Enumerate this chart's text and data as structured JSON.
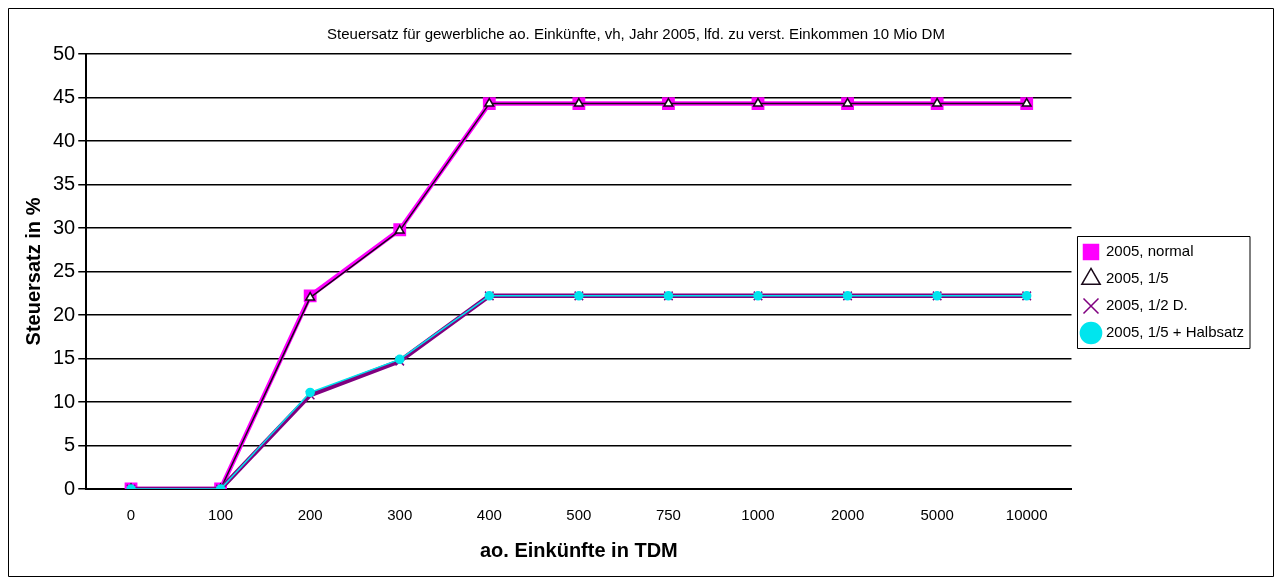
{
  "chart_data": {
    "type": "line",
    "title": "Steuersatz für gewerbliche ao. Einkünfte, vh, Jahr 2005, lfd. zu verst. Einkommen 10 Mio DM",
    "xlabel": "ao. Einkünfte in TDM",
    "ylabel": "Steuersatz in %",
    "categories": [
      "0",
      "100",
      "200",
      "300",
      "400",
      "500",
      "750",
      "1000",
      "2000",
      "5000",
      "10000"
    ],
    "series": [
      {
        "name": "2005, normal",
        "color": "#ff00ff",
        "marker": "square",
        "values": [
          0,
          0,
          22.2,
          29.8,
          44.3,
          44.3,
          44.3,
          44.3,
          44.3,
          44.3,
          44.3
        ]
      },
      {
        "name": "2005, 1/5",
        "color": "#1a0a1a",
        "marker": "triangle",
        "values": [
          0,
          0,
          22,
          29.7,
          44.3,
          44.3,
          44.3,
          44.3,
          44.3,
          44.3,
          44.3
        ]
      },
      {
        "name": "2005, 1/2 D.",
        "color": "#800080",
        "marker": "cross",
        "values": [
          0,
          0,
          10.8,
          14.7,
          22.2,
          22.2,
          22.2,
          22.2,
          22.2,
          22.2,
          22.2
        ]
      },
      {
        "name": "2005, 1/5 + Halbsatz",
        "color": "#00e5ee",
        "marker": "circle",
        "values": [
          0,
          0,
          11.1,
          14.9,
          22.2,
          22.2,
          22.2,
          22.2,
          22.2,
          22.2,
          22.2
        ]
      }
    ],
    "ylim": [
      0,
      50
    ],
    "yticks": [
      0,
      5,
      10,
      15,
      20,
      25,
      30,
      35,
      40,
      45,
      50
    ],
    "grid": "y",
    "legend": "right",
    "line_style": "solid"
  }
}
